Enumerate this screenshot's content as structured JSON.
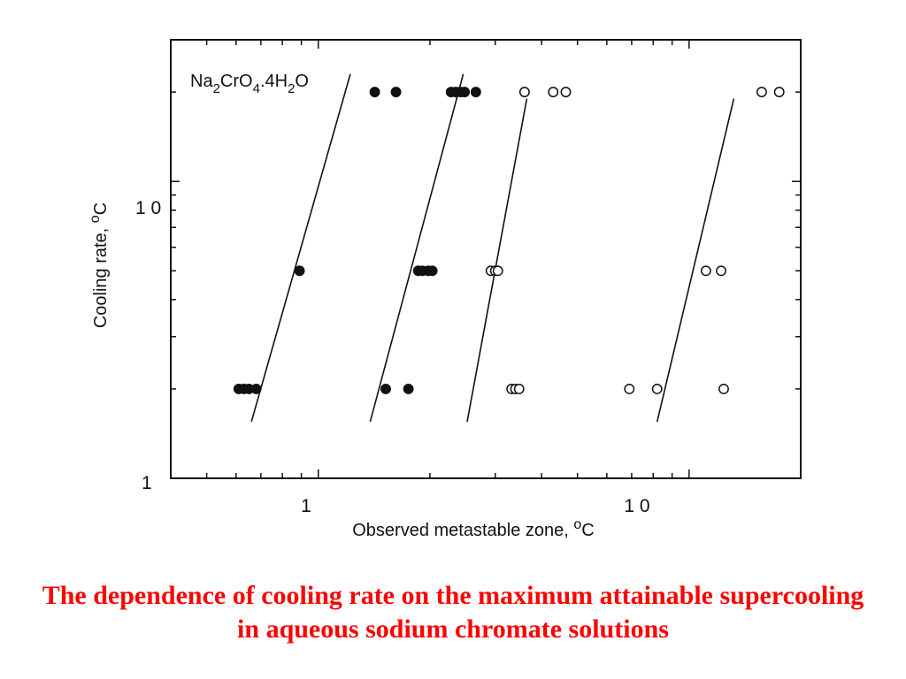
{
  "chart_data": {
    "type": "scatter",
    "title": "",
    "compound": {
      "parts": [
        {
          "text": "Na",
          "sub": false
        },
        {
          "text": "2",
          "sub": true
        },
        {
          "text": "CrO",
          "sub": false
        },
        {
          "text": "4",
          "sub": true
        },
        {
          "text": ".4H",
          "sub": false
        },
        {
          "text": "2",
          "sub": true
        },
        {
          "text": "O",
          "sub": false
        }
      ]
    },
    "xlabel": "Observed metastable zone, ",
    "xlabel_unit": "o",
    "xlabel_unit_tail": "C",
    "ylabel": "Cooling rate, ",
    "ylabel_unit": "o",
    "ylabel_unit_tail": "C",
    "xscale": "log",
    "yscale": "log",
    "xlim": [
      0.4,
      20
    ],
    "ylim": [
      1,
      30
    ],
    "x_tick_labels": [
      {
        "value": 1,
        "label": "1"
      },
      {
        "value": 10,
        "label": "1 0"
      }
    ],
    "y_tick_labels": [
      {
        "value": 1,
        "label": "1"
      },
      {
        "value": 10,
        "label": "1 0"
      }
    ],
    "grid": false,
    "series": [
      {
        "marker": "filled",
        "points": [
          [
            0.61,
            2
          ],
          [
            0.63,
            2
          ],
          [
            0.65,
            2
          ],
          [
            0.68,
            2
          ],
          [
            1.52,
            2
          ],
          [
            1.75,
            2
          ],
          [
            0.89,
            5
          ],
          [
            1.86,
            5
          ],
          [
            1.91,
            5
          ],
          [
            1.98,
            5
          ],
          [
            2.03,
            5
          ],
          [
            1.42,
            20
          ],
          [
            1.62,
            20
          ],
          [
            2.28,
            20
          ],
          [
            2.35,
            20
          ],
          [
            2.42,
            20
          ],
          [
            2.48,
            20
          ],
          [
            2.66,
            20
          ]
        ]
      },
      {
        "marker": "open",
        "points": [
          [
            3.32,
            2
          ],
          [
            3.4,
            2
          ],
          [
            3.48,
            2
          ],
          [
            6.9,
            2
          ],
          [
            8.2,
            2
          ],
          [
            12.4,
            2
          ],
          [
            2.92,
            5
          ],
          [
            3.0,
            5
          ],
          [
            3.05,
            5
          ],
          [
            11.1,
            5
          ],
          [
            12.2,
            5
          ],
          [
            3.6,
            20
          ],
          [
            4.3,
            20
          ],
          [
            4.65,
            20
          ],
          [
            15.7,
            20
          ],
          [
            17.5,
            20
          ]
        ]
      }
    ],
    "fit_lines": [
      {
        "x": [
          0.66,
          1.22
        ],
        "y": [
          1.55,
          23
        ]
      },
      {
        "x": [
          1.38,
          2.46
        ],
        "y": [
          1.55,
          23
        ]
      },
      {
        "x": [
          2.52,
          3.65
        ],
        "y": [
          1.55,
          19
        ]
      },
      {
        "x": [
          8.2,
          13.2
        ],
        "y": [
          1.55,
          19
        ]
      }
    ]
  },
  "caption": {
    "text": "The dependence of cooling rate on the maximum attainable supercooling in aqueous sodium chromate solutions",
    "color": "#ff0000"
  }
}
